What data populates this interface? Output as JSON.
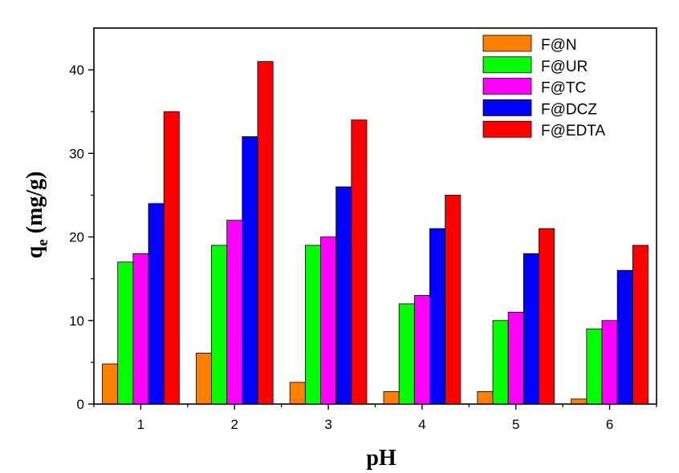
{
  "chart_data": {
    "type": "bar",
    "xlabel": "pH",
    "ylabel_main": "q",
    "ylabel_sub": "e",
    "ylabel_unit": " (mg/g)",
    "categories": [
      "1",
      "2",
      "3",
      "4",
      "5",
      "6"
    ],
    "ylim": [
      0,
      45
    ],
    "yticks": [
      0,
      10,
      20,
      30,
      40
    ],
    "yticks_labels": [
      "0",
      "10",
      "20",
      "30",
      "40"
    ],
    "grid": false,
    "legend_position": "top-right",
    "series": [
      {
        "name": "F@N",
        "color": "#ff8000",
        "values": [
          4.8,
          6.1,
          2.6,
          1.5,
          1.5,
          0.6
        ]
      },
      {
        "name": "F@UR",
        "color": "#00ff00",
        "values": [
          17,
          19,
          19,
          12,
          10,
          9
        ]
      },
      {
        "name": "F@TC",
        "color": "#ff00ff",
        "values": [
          18,
          22,
          20,
          13,
          11,
          10
        ]
      },
      {
        "name": "F@DCZ",
        "color": "#0000ff",
        "values": [
          24,
          32,
          26,
          21,
          18,
          16
        ]
      },
      {
        "name": "F@EDTA",
        "color": "#ff0000",
        "values": [
          35,
          41,
          34,
          25,
          21,
          19
        ]
      }
    ]
  }
}
